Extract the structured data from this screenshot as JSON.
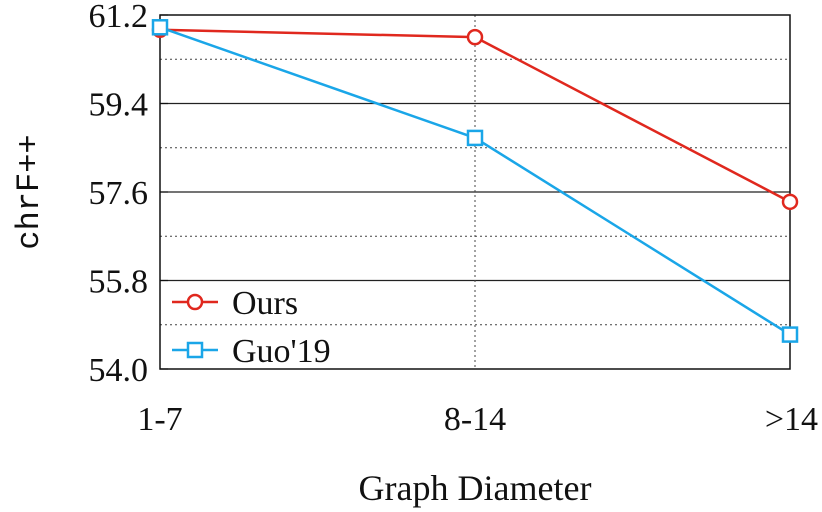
{
  "chart_data": {
    "type": "line",
    "xlabel": "Graph Diameter",
    "ylabel": "chrF++",
    "categories": [
      "1-7",
      "8-14",
      ">14"
    ],
    "ylim": [
      54.0,
      61.2
    ],
    "yticks": [
      "54.0",
      "55.8",
      "57.6",
      "59.4",
      "61.2"
    ],
    "grid": true,
    "legend_position": "bottom-left",
    "series": [
      {
        "name": "Ours",
        "values": [
          60.9,
          60.75,
          57.4
        ],
        "color": "#e0281e",
        "marker": "circle"
      },
      {
        "name": "Guo'19",
        "values": [
          60.95,
          58.7,
          54.7
        ],
        "color": "#1aa6e8",
        "marker": "square"
      }
    ]
  }
}
